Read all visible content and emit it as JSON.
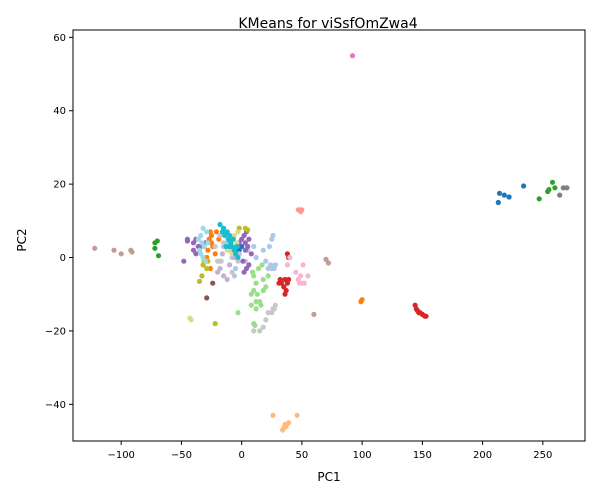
{
  "chart_data": {
    "type": "scatter",
    "title": "KMeans for viSsfOmZwa4",
    "xlabel": "PC1",
    "ylabel": "PC2",
    "xlim": [
      -140,
      285
    ],
    "ylim": [
      -50,
      62
    ],
    "xticks": [
      "-100",
      "-50",
      "0",
      "50",
      "100",
      "150",
      "200",
      "250"
    ],
    "yticks": [
      "-40",
      "-20",
      "0",
      "20",
      "40",
      "60"
    ],
    "grid": false,
    "series": [
      {
        "color": "#1f77b4",
        "points": [
          [
            213,
            15
          ],
          [
            214,
            17.5
          ],
          [
            218,
            17
          ],
          [
            222,
            16.5
          ],
          [
            234,
            19.5
          ],
          [
            -3,
            1
          ],
          [
            -2,
            2
          ],
          [
            0,
            3
          ],
          [
            -5,
            2
          ]
        ]
      },
      {
        "color": "#aec7e8",
        "points": [
          [
            -15,
            3
          ],
          [
            -10,
            -2
          ],
          [
            -5,
            -3
          ],
          [
            -8,
            0
          ],
          [
            -2,
            1
          ],
          [
            5,
            2
          ],
          [
            10,
            3
          ],
          [
            20,
            -1
          ],
          [
            22,
            -3
          ],
          [
            25,
            -3
          ],
          [
            24,
            -2
          ],
          [
            27,
            -3
          ],
          [
            23,
            3
          ],
          [
            25,
            5
          ],
          [
            26,
            6
          ],
          [
            18,
            2
          ],
          [
            12,
            0
          ],
          [
            -12,
            4
          ],
          [
            -18,
            -1
          ],
          [
            -6,
            -5
          ],
          [
            3,
            -1
          ],
          [
            28,
            -2
          ]
        ]
      },
      {
        "color": "#ff7f0e",
        "points": [
          [
            -27,
            5
          ],
          [
            -25,
            6
          ],
          [
            -24,
            3
          ],
          [
            -28,
            2
          ],
          [
            -29,
            0
          ],
          [
            -26,
            -3
          ],
          [
            -22,
            1
          ],
          [
            -21,
            7
          ],
          [
            -19,
            5
          ],
          [
            -26,
            7
          ],
          [
            99,
            -12
          ],
          [
            100,
            -11.5
          ],
          [
            -25,
            4
          ]
        ]
      },
      {
        "color": "#ffbb78",
        "points": [
          [
            26,
            -43
          ],
          [
            39,
            -45
          ],
          [
            37,
            -46
          ],
          [
            35,
            -46.5
          ],
          [
            34,
            -47
          ],
          [
            46,
            -43
          ],
          [
            36,
            -45.5
          ]
        ]
      },
      {
        "color": "#2ca02c",
        "points": [
          [
            -72,
            4
          ],
          [
            -70,
            4.5
          ],
          [
            -72,
            2.5
          ],
          [
            -69,
            0.5
          ],
          [
            247,
            16
          ],
          [
            254,
            18
          ],
          [
            255,
            18.5
          ],
          [
            258,
            20.5
          ],
          [
            260,
            19
          ]
        ]
      },
      {
        "color": "#98df8a",
        "points": [
          [
            10,
            -5
          ],
          [
            12,
            -7
          ],
          [
            10,
            -9
          ],
          [
            15,
            -12
          ],
          [
            13,
            -10
          ],
          [
            18,
            -6
          ],
          [
            20,
            -8
          ],
          [
            12,
            -14
          ],
          [
            10,
            -18
          ],
          [
            12,
            -12
          ],
          [
            14,
            -3
          ],
          [
            17,
            -2
          ],
          [
            8,
            -13
          ],
          [
            -3,
            -15
          ],
          [
            8,
            -10
          ],
          [
            22,
            -5
          ],
          [
            18,
            -9
          ],
          [
            9,
            -4
          ],
          [
            11,
            -18.5
          ],
          [
            16,
            -13
          ]
        ]
      },
      {
        "color": "#d62728",
        "points": [
          [
            38,
            1
          ],
          [
            39,
            0
          ],
          [
            33,
            -7
          ],
          [
            35,
            -8
          ],
          [
            36,
            -10
          ],
          [
            37,
            -9
          ],
          [
            38,
            -7
          ],
          [
            39,
            -6
          ],
          [
            31,
            -7
          ],
          [
            32,
            -6
          ],
          [
            36,
            -6
          ],
          [
            144,
            -13
          ],
          [
            145,
            -14
          ],
          [
            146,
            -14.5
          ],
          [
            147,
            -15
          ],
          [
            148,
            -15
          ],
          [
            150,
            -15.5
          ],
          [
            152,
            -16
          ],
          [
            153,
            -16
          ]
        ]
      },
      {
        "color": "#ff9896",
        "points": [
          [
            47,
            13
          ],
          [
            49,
            12.5
          ],
          [
            48,
            13
          ],
          [
            50,
            13
          ]
        ]
      },
      {
        "color": "#9467bd",
        "points": [
          [
            -45,
            4.5
          ],
          [
            -40,
            4
          ],
          [
            -38,
            5
          ],
          [
            -36,
            3
          ],
          [
            -40,
            2
          ],
          [
            -38,
            1
          ],
          [
            -30,
            4
          ],
          [
            -34,
            3
          ],
          [
            -2,
            4
          ],
          [
            0,
            5
          ],
          [
            2,
            6
          ],
          [
            3,
            4
          ],
          [
            4,
            7
          ],
          [
            6,
            5
          ],
          [
            5,
            3
          ],
          [
            4,
            -3
          ],
          [
            2,
            -4
          ],
          [
            6,
            -2
          ],
          [
            3,
            2
          ],
          [
            1,
            -1
          ],
          [
            8,
            1
          ],
          [
            -48,
            -1
          ],
          [
            -45,
            5
          ]
        ]
      },
      {
        "color": "#c5b0d5",
        "points": [
          [
            -20,
            -4
          ],
          [
            -18,
            -3
          ],
          [
            -15,
            -5
          ],
          [
            -12,
            -6
          ],
          [
            -10,
            -2
          ],
          [
            -6,
            0
          ],
          [
            -8,
            3
          ],
          [
            -16,
            1
          ]
        ]
      },
      {
        "color": "#8c564b",
        "points": [
          [
            -29,
            -11
          ],
          [
            -24,
            -7
          ]
        ]
      },
      {
        "color": "#c49c94",
        "points": [
          [
            -122,
            2.5
          ],
          [
            -106,
            2
          ],
          [
            -100,
            1
          ],
          [
            -92,
            2
          ],
          [
            -91,
            1.5
          ],
          [
            70,
            -0.5
          ],
          [
            72,
            -1.5
          ],
          [
            60,
            -15.5
          ]
        ]
      },
      {
        "color": "#e377c2",
        "points": [
          [
            92,
            55
          ]
        ]
      },
      {
        "color": "#f7b6d2",
        "points": [
          [
            40,
            0
          ],
          [
            45,
            -4
          ],
          [
            47,
            -6
          ],
          [
            48,
            -7
          ],
          [
            50,
            -7
          ],
          [
            52,
            -7
          ],
          [
            49,
            -5
          ],
          [
            51,
            -2
          ],
          [
            38,
            -2
          ],
          [
            55,
            -5
          ]
        ]
      },
      {
        "color": "#7f7f7f",
        "points": [
          [
            264,
            17
          ],
          [
            267,
            19
          ],
          [
            270,
            19
          ]
        ]
      },
      {
        "color": "#c7c7c7",
        "points": [
          [
            -20,
            -1
          ],
          [
            -17,
            -1
          ],
          [
            -15,
            4
          ],
          [
            -22,
            3
          ],
          [
            -18,
            6
          ],
          [
            -3,
            -1
          ],
          [
            -8,
            -4
          ],
          [
            15,
            -20
          ],
          [
            18,
            -19
          ],
          [
            20,
            -17
          ],
          [
            22,
            -15
          ],
          [
            25,
            -15
          ],
          [
            26,
            -14
          ],
          [
            27,
            -14
          ],
          [
            28,
            -13
          ],
          [
            10,
            -20
          ],
          [
            -10,
            2
          ]
        ]
      },
      {
        "color": "#bcbd22",
        "points": [
          [
            -33,
            -5
          ],
          [
            -35,
            -6.5
          ],
          [
            -32,
            -2
          ],
          [
            -31,
            -1
          ],
          [
            -29,
            -3
          ],
          [
            -22,
            -18
          ],
          [
            -28,
            -1
          ],
          [
            -2,
            8
          ],
          [
            3,
            8
          ],
          [
            5,
            7.5
          ]
        ]
      },
      {
        "color": "#dbdb8d",
        "points": [
          [
            -43,
            -16.5
          ],
          [
            -42,
            -17
          ],
          [
            -14,
            6
          ],
          [
            -10,
            5
          ],
          [
            -12,
            2
          ],
          [
            -6,
            6
          ],
          [
            -4,
            4
          ],
          [
            -8,
            1
          ],
          [
            -3,
            7
          ]
        ]
      },
      {
        "color": "#17becf",
        "points": [
          [
            -18,
            9
          ],
          [
            -15,
            8
          ],
          [
            -12,
            7
          ],
          [
            -10,
            6
          ],
          [
            -14,
            6
          ],
          [
            -9,
            4
          ],
          [
            -8,
            3
          ],
          [
            -6,
            2
          ],
          [
            -5,
            1
          ],
          [
            -3,
            0
          ],
          [
            -11,
            5
          ],
          [
            -13,
            3
          ],
          [
            -16,
            7
          ],
          [
            -7,
            5
          ],
          [
            -4,
            3
          ],
          [
            -10,
            3
          ]
        ]
      },
      {
        "color": "#9edae5",
        "points": [
          [
            -32,
            8
          ],
          [
            -34,
            6
          ],
          [
            -33,
            4
          ],
          [
            -31,
            3
          ],
          [
            -34,
            1
          ],
          [
            -35,
            2
          ],
          [
            -30,
            -1
          ],
          [
            -28,
            4
          ],
          [
            -32,
            0
          ],
          [
            -36,
            5
          ],
          [
            -29,
            7
          ]
        ]
      }
    ]
  }
}
